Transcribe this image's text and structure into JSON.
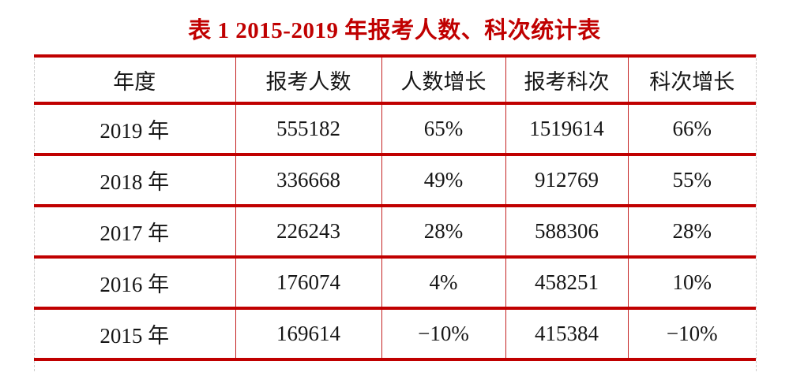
{
  "title": "表 1 2015-2019 年报考人数、科次统计表",
  "colors": {
    "title_red": "#c00000",
    "rule_red_thick": "#c00000",
    "rule_red_thin": "#c42222",
    "edge_dashed_gray": "#cccccc",
    "text_black": "#161616",
    "background": "#ffffff"
  },
  "table": {
    "headers": [
      "年度",
      "报考人数",
      "人数增长",
      "报考科次",
      "科次增长"
    ],
    "rows": [
      [
        "2019 年",
        "555182",
        "65%",
        "1519614",
        "66%"
      ],
      [
        "2018 年",
        "336668",
        "49%",
        "912769",
        "55%"
      ],
      [
        "2017 年",
        "226243",
        "28%",
        "588306",
        "28%"
      ],
      [
        "2016 年",
        "176074",
        "4%",
        "458251",
        "10%"
      ],
      [
        "2015 年",
        "169614",
        "−10%",
        "415384",
        "−10%"
      ]
    ]
  }
}
